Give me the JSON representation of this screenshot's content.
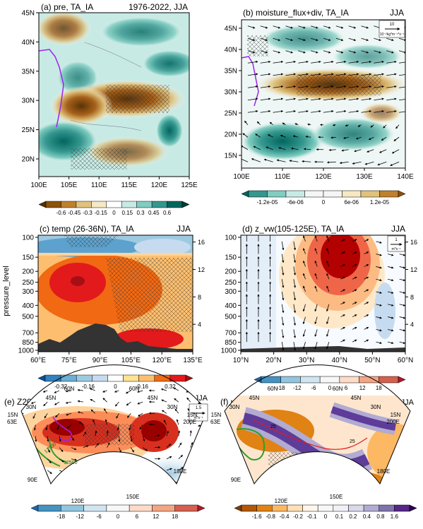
{
  "panels": [
    {
      "id": "a",
      "title": "(a) pre, TA_IA",
      "right_title": "1976-2022, JJA",
      "x_ticks": [
        "100E",
        "105E",
        "110E",
        "115E",
        "120E",
        "125E"
      ],
      "y_ticks": [
        "20N",
        "25N",
        "30N",
        "35N",
        "40N",
        "45N"
      ],
      "colorbar": [
        "-0.6",
        "-0.45",
        "-0.3",
        "-0.15",
        "0",
        "0.15",
        "0.3",
        "0.45",
        "0.6"
      ]
    },
    {
      "id": "b",
      "title": "(b) moisture_flux+div, TA_IA",
      "right_title": "JJA",
      "x_ticks": [
        "100E",
        "110E",
        "120E",
        "130E",
        "140E"
      ],
      "y_ticks": [
        "15N",
        "20N",
        "25N",
        "30N",
        "35N",
        "40N",
        "45N"
      ],
      "ref_vector": "10",
      "ref_unit": "10⁻²kg*m⁻¹*s⁻¹",
      "colorbar": [
        "-1.2e-05",
        "-6e-06",
        "0",
        "6e-06",
        "1.2e-05"
      ]
    },
    {
      "id": "c",
      "title": "(c) temp (26-36N), TA_IA",
      "right_title": "JJA",
      "y_label": "pressure_level",
      "x_ticks": [
        "60°E",
        "75°E",
        "90°E",
        "105°E",
        "120°E",
        "135°E"
      ],
      "y_ticks": [
        "100",
        "150",
        "200",
        "250",
        "300",
        "400",
        "500",
        "700",
        "850",
        "1000"
      ],
      "right_ticks": [
        "16",
        "12",
        "8",
        "4"
      ],
      "colorbar": [
        "-0.32",
        "-0.16",
        "0",
        "0.16",
        "0.32"
      ]
    },
    {
      "id": "d",
      "title": "(d) z_vw(105-125E), TA_IA",
      "right_title": "JJA",
      "x_ticks": [
        "10°N",
        "20°N",
        "30°N",
        "40°N",
        "50°N",
        "60°N"
      ],
      "y_ticks": [
        "100",
        "150",
        "200",
        "250",
        "300",
        "400",
        "500",
        "700",
        "850",
        "1000"
      ],
      "right_ticks": [
        "16",
        "12",
        "8",
        "4"
      ],
      "ref_vector": "1",
      "ref_unit": "m*s⁻¹",
      "colorbar": [
        "-18",
        "-12",
        "-6",
        "0",
        "6",
        "12",
        "18"
      ]
    },
    {
      "id": "e",
      "title": "(e) Z200+wind, TA_IA",
      "right_title": "JJA",
      "ref_vector": "1.5",
      "ref_unit": "m*s⁻¹",
      "lat_labels": [
        "15N",
        "30N",
        "45N",
        "60N"
      ],
      "lon_labels": [
        "63E",
        "90E",
        "120E",
        "150E",
        "180E",
        "200E"
      ],
      "contour_labels": [
        "12500",
        "12500"
      ],
      "colorbar": [
        "-18",
        "-12",
        "-6",
        "0",
        "6",
        "12",
        "18"
      ]
    },
    {
      "id": "f",
      "title": "(f) u200, TA_IA",
      "right_title": "1976-2022, JJA",
      "lat_labels": [
        "15N",
        "30N",
        "45N",
        "60N"
      ],
      "lon_labels": [
        "63E",
        "90E",
        "120E",
        "150E",
        "180E",
        "200E"
      ],
      "contour_labels": [
        "25",
        "25"
      ],
      "colorbar": [
        "-1.6",
        "-0.8",
        "-0.4",
        "-0.2",
        "-0.1",
        "0",
        "0.1",
        "0.2",
        "0.4",
        "0.8",
        "1.6"
      ]
    }
  ]
}
